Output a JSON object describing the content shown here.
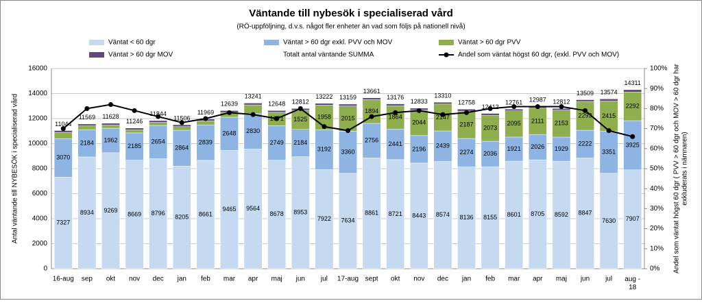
{
  "chart_data": {
    "type": "stacked-bar-line",
    "title": "Väntande till nybesök i specialiserad vård",
    "subtitle": "(RÖ-uppföljning, d.v.s. något fler enheter än vad som följs på nationell nivå)",
    "ylabel": "Antal väntande till NYBESÖK i specialiserad vård",
    "y2label": [
      "Andel som väntat högst 60 dgr ( PVV > 60 dgr och MOV > 60 dgr har",
      "exkluderats i nämnaren)"
    ],
    "categories": [
      "16-aug",
      "sep",
      "okt",
      "nov",
      "dec",
      "jan",
      "feb",
      "mar",
      "apr",
      "maj",
      "jun",
      "jul",
      "17-aug",
      "sept",
      "okt",
      "nov",
      "dec",
      "jan",
      "feb",
      "mar",
      "apr",
      "maj",
      "jun",
      "jul",
      "aug -\n18"
    ],
    "series": [
      {
        "name": "Väntat < 60 dgr",
        "color": "#c5d9f1",
        "values": [
          7327,
          8934,
          9269,
          8669,
          8796,
          8205,
          8661,
          9465,
          9564,
          8678,
          8953,
          7922,
          7634,
          8861,
          8721,
          8443,
          8574,
          8136,
          8155,
          8601,
          8705,
          8592,
          8847,
          7630,
          7907
        ]
      },
      {
        "name": "Väntat > 60 dgr exkl. PVV och MOV",
        "color": "#8db4e2",
        "values": [
          3070,
          2184,
          1962,
          2185,
          2654,
          2864,
          2839,
          2648,
          2830,
          2749,
          2184,
          3192,
          3360,
          2756,
          2441,
          2196,
          2439,
          2274,
          2036,
          1921,
          2026,
          1929,
          2222,
          3351,
          3925
        ]
      },
      {
        "name": "Väntat > 60 dgr PVV",
        "color": "#8fae4e",
        "values": [
          497,
          301,
          247,
          242,
          244,
          287,
          319,
          376,
          697,
          1071,
          1525,
          1958,
          2015,
          1894,
          1864,
          2044,
          2147,
          2187,
          2073,
          2095,
          2111,
          2153,
          2293,
          2415,
          2292
        ]
      },
      {
        "name": "Väntat > 60 dgr MOV",
        "color": "#604a7b",
        "values": [
          150,
          150,
          150,
          150,
          150,
          150,
          150,
          150,
          150,
          150,
          150,
          150,
          150,
          150,
          150,
          150,
          150,
          161,
          148,
          144,
          145,
          138,
          147,
          178,
          187
        ]
      },
      {
        "name": "Totalt antal väntande SUMMA",
        "values": [
          11044,
          11569,
          11628,
          11246,
          11844,
          11506,
          11969,
          12639,
          13241,
          12648,
          12812,
          13222,
          13159,
          13661,
          13176,
          12833,
          13310,
          12758,
          12412,
          12761,
          12987,
          12812,
          13509,
          13574,
          14311
        ]
      },
      {
        "name": "Andel som väntat högst 60 dgr, (exkl. PVV och MOV)",
        "color": "#000000",
        "axis": "y2",
        "values": [
          70,
          80,
          82,
          79,
          76,
          73,
          75,
          78,
          77,
          75,
          80,
          71,
          69,
          76,
          78,
          79,
          77,
          78,
          80,
          81,
          81,
          81,
          79,
          69,
          66
        ]
      }
    ],
    "ylim": [
      0,
      16000
    ],
    "yticks": [
      0,
      2000,
      4000,
      6000,
      8000,
      10000,
      12000,
      14000,
      16000
    ],
    "y2lim": [
      0,
      100
    ],
    "y2ticks": [
      {
        "value": 0,
        "label": "0%"
      },
      {
        "value": 10,
        "label": "10%"
      },
      {
        "value": 20,
        "label": "20%"
      },
      {
        "value": 30,
        "label": "30%"
      },
      {
        "value": 40,
        "label": "40%"
      },
      {
        "value": 50,
        "label": "50%"
      },
      {
        "value": 60,
        "label": "60%"
      },
      {
        "value": 70,
        "label": "70%"
      },
      {
        "value": 80,
        "label": "80%"
      },
      {
        "value": 90,
        "label": "90%"
      },
      {
        "value": 100,
        "label": "100%"
      }
    ],
    "grid": true
  }
}
